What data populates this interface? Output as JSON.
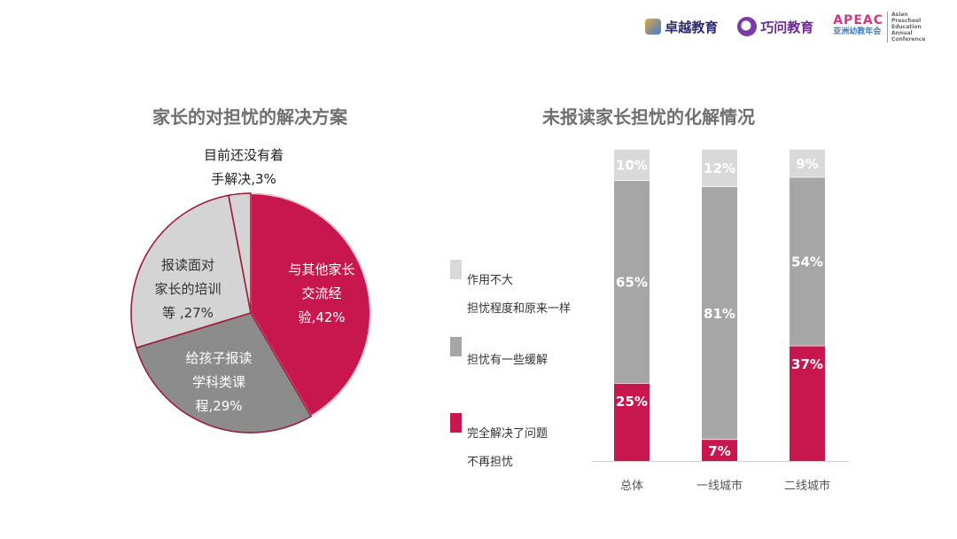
{
  "logos": {
    "brand1": "卓越教育",
    "brand2": "巧问教育",
    "brand3_word": "APEAC",
    "brand3_sub": "亚洲幼教年会",
    "brand3_side": "Asian Preschool Education Annual Conference"
  },
  "colors": {
    "crimson": "#c8174f",
    "dark_gray": "#8c8c8c",
    "mid_gray": "#a6a6a6",
    "light_gray": "#d4d4d4"
  },
  "chart_data": [
    {
      "type": "pie",
      "title": "家长的对担忧的解决方案",
      "slices": [
        {
          "label": "与其他家长交流经验,42%",
          "value": 42,
          "color": "#c8174f"
        },
        {
          "label": "给孩子报读学科类课程,29%",
          "value": 29,
          "color": "#8c8c8c"
        },
        {
          "label": "报读面对家长的培训等 ,27%",
          "value": 27,
          "color": "#d4d4d4"
        },
        {
          "label": "目前还没有着手解决,3%",
          "value": 3,
          "color": "#d4d4d4"
        }
      ]
    },
    {
      "type": "bar",
      "stacked": true,
      "percent": true,
      "title": "未报读家长担忧的化解情况",
      "categories": [
        "总体",
        "一线城市",
        "二线城市"
      ],
      "ylim": [
        0,
        100
      ],
      "series": [
        {
          "name": "完全解决了问题不再担忧",
          "values": [
            25,
            7,
            37
          ],
          "labels": [
            "25%",
            "7%",
            "37%"
          ],
          "color": "#c8174f"
        },
        {
          "name": "担忧有一些缓解",
          "values": [
            65,
            81,
            54
          ],
          "labels": [
            "65%",
            "81%",
            "54%"
          ],
          "color": "#a6a6a6"
        },
        {
          "name": "作用不大担忧程度和原来一样",
          "values": [
            10,
            12,
            9
          ],
          "labels": [
            "10%",
            "12%",
            "9%"
          ],
          "color": "#d9d9d9"
        }
      ],
      "legend": [
        {
          "line1": "作用不大",
          "line2": "担忧程度和原来一样",
          "color": "#d9d9d9"
        },
        {
          "line1": "担忧有一些缓解",
          "line2": "",
          "color": "#a6a6a6"
        },
        {
          "line1": "完全解决了问题",
          "line2": "不再担忧",
          "color": "#c8174f"
        }
      ],
      "legend_position": "left"
    }
  ],
  "pie_labels": [
    {
      "lines": [
        "与其他家长",
        "交流经",
        "验,42%"
      ]
    },
    {
      "lines": [
        "给孩子报读",
        "学科类课",
        "程,29%"
      ]
    },
    {
      "lines": [
        "报读面对",
        "家长的培训",
        "等 ,27%"
      ]
    },
    {
      "lines": [
        "目前还没有着",
        "手解决,3%"
      ]
    }
  ]
}
